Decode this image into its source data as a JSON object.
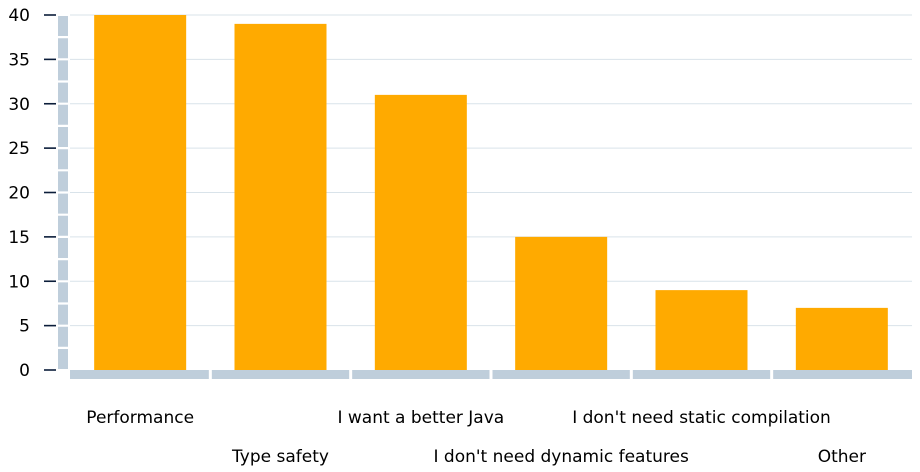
{
  "chart_data": {
    "type": "bar",
    "title": "",
    "xlabel": "",
    "ylabel": "",
    "categories": [
      "Performance",
      "Type safety",
      "I want a better Java",
      "I don't need dynamic features",
      "I don't need static compilation",
      "Other"
    ],
    "values": [
      40,
      39,
      31,
      15,
      9,
      7
    ],
    "ylim": [
      0,
      40
    ],
    "yticks": [
      "0",
      "5",
      "10",
      "15",
      "20",
      "25",
      "30",
      "35",
      "40"
    ],
    "grid": true,
    "legend": "none",
    "label_layout": "staggered",
    "colors": {
      "bar": "#FFAA00",
      "axis": "#BFCEDB",
      "grid": "#D9E3EA"
    }
  }
}
